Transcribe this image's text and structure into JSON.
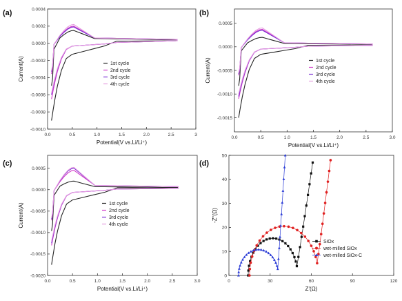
{
  "chart_data": [
    {
      "id": "a",
      "panel_label": "(a)",
      "type": "line",
      "xlabel": "Potential(V vs.Li/Li⁺)",
      "ylabel": "Current(A)",
      "xlim": [
        0,
        3.0
      ],
      "ylim": [
        -0.001,
        0.0004
      ],
      "xticks": [
        0,
        0.5,
        1.0,
        1.5,
        2.0,
        2.5,
        3.0
      ],
      "xtick_labels": [
        "0.0",
        "0.5",
        "1.0",
        "1.5",
        "2.0",
        "2.5",
        "3"
      ],
      "yticks": [
        0.0004,
        0.0002,
        0.0,
        -0.0002,
        -0.0004,
        -0.0006,
        -0.0008,
        -0.001
      ],
      "ytick_labels": [
        "0.0004",
        "0.0002",
        "0.0000",
        "-0.0002",
        "-0.0004",
        "-0.0006",
        "-0.0008",
        "-0.0010"
      ],
      "legend_position": "center",
      "series": [
        {
          "name": "1st cycle",
          "color": "#222222",
          "peak": 0.00015,
          "min": -0.0009,
          "upper_tail": 4e-05,
          "lower_tail": 3e-05,
          "shoulder": -8e-05
        },
        {
          "name": "2nd cycle",
          "color": "#d23ac8",
          "peak": 0.0002,
          "min": -0.00065,
          "upper_tail": 4.5e-05,
          "lower_tail": 3e-05,
          "shoulder": -2e-05
        },
        {
          "name": "3rd cycle",
          "color": "#7a2fd4",
          "peak": 0.00019,
          "min": -0.0006,
          "upper_tail": 4.5e-05,
          "lower_tail": 3e-05,
          "shoulder": -2e-05
        },
        {
          "name": "4th cycle",
          "color": "#e59ce0",
          "peak": 0.00022,
          "min": -0.00058,
          "upper_tail": 4.5e-05,
          "lower_tail": 3e-05,
          "shoulder": -2e-05
        }
      ]
    },
    {
      "id": "b",
      "panel_label": "(b)",
      "type": "line",
      "xlabel": "Potential(V vs.Li/Li⁺)",
      "ylabel": "Current(A)",
      "xlim": [
        0,
        3.0
      ],
      "ylim": [
        -0.0018,
        0.0008
      ],
      "xticks": [
        0,
        0.5,
        1.0,
        1.5,
        2.0,
        2.5,
        3.0
      ],
      "xtick_labels": [
        "0.0",
        "0.5",
        "1.0",
        "1.5",
        "2.0",
        "2.5",
        "3.0"
      ],
      "yticks": [
        0.0005,
        0.0,
        -0.0005,
        -0.001,
        -0.0015
      ],
      "ytick_labels": [
        "0.0005",
        "0.0000",
        "-0.0005",
        "-0.0010",
        "-0.0015"
      ],
      "legend_position": "center",
      "series": [
        {
          "name": "1st cycle",
          "color": "#222222",
          "peak": 0.0002,
          "min": -0.0015,
          "upper_tail": 5e-05,
          "lower_tail": 3e-05,
          "shoulder": -0.0001
        },
        {
          "name": "2nd cycle",
          "color": "#d23ac8",
          "peak": 0.00037,
          "min": -0.0011,
          "upper_tail": 6e-05,
          "lower_tail": 3e-05,
          "shoulder": -3e-05
        },
        {
          "name": "3rd cycle",
          "color": "#7a2fd4",
          "peak": 0.00035,
          "min": -0.00105,
          "upper_tail": 6e-05,
          "lower_tail": 3e-05,
          "shoulder": -3e-05
        },
        {
          "name": "4th cycle",
          "color": "#e59ce0",
          "peak": 0.0004,
          "min": -0.001,
          "upper_tail": 6e-05,
          "lower_tail": 3e-05,
          "shoulder": -3e-05
        }
      ]
    },
    {
      "id": "c",
      "panel_label": "(c)",
      "type": "line",
      "xlabel": "Potential(V vs.Li/Li⁺)",
      "ylabel": "Current(A)",
      "xlim": [
        0,
        3.0
      ],
      "ylim": [
        -0.002,
        0.0008
      ],
      "xticks": [
        0,
        0.5,
        1.0,
        1.5,
        2.0,
        2.5,
        3.0
      ],
      "xtick_labels": [
        "0.0",
        "0.5",
        "1.0",
        "1.5",
        "2.0",
        "2.5",
        "3.0"
      ],
      "yticks": [
        0.0005,
        0.0,
        -0.0005,
        -0.001,
        -0.0015,
        -0.002
      ],
      "ytick_labels": [
        "0.0005",
        "0.0000",
        "-0.0005",
        "-0.0010",
        "-0.0015",
        "-0.0020"
      ],
      "legend_position": "center",
      "series": [
        {
          "name": "1st cycle",
          "color": "#222222",
          "peak": 0.0002,
          "min": -0.00175,
          "upper_tail": 5e-05,
          "lower_tail": 3e-05,
          "shoulder": -0.00015
        },
        {
          "name": "2nd cycle",
          "color": "#d23ac8",
          "peak": 0.00045,
          "min": -0.0013,
          "upper_tail": 7e-05,
          "lower_tail": 3e-05,
          "shoulder": -4e-05
        },
        {
          "name": "3rd cycle",
          "color": "#7a2fd4",
          "peak": 0.0005,
          "min": -0.00125,
          "upper_tail": 7e-05,
          "lower_tail": 3e-05,
          "shoulder": -4e-05
        },
        {
          "name": "4th cycle",
          "color": "#e59ce0",
          "peak": 0.00052,
          "min": -0.0012,
          "upper_tail": 7e-05,
          "lower_tail": 3e-05,
          "shoulder": -4e-05
        }
      ]
    },
    {
      "id": "d",
      "panel_label": "(d)",
      "type": "scatter",
      "xlabel": "Z'(Ω)",
      "ylabel": "-Z''(Ω)",
      "xlim": [
        0,
        120
      ],
      "ylim": [
        0,
        50
      ],
      "xticks": [
        0,
        30,
        60,
        90,
        120
      ],
      "xtick_labels": [
        "0",
        "30",
        "60",
        "90",
        "120"
      ],
      "yticks": [
        0,
        10,
        20,
        30,
        40,
        50
      ],
      "ytick_labels": [
        "0",
        "10",
        "20",
        "30",
        "40",
        "50"
      ],
      "legend_position": "lower-right",
      "series": [
        {
          "name": "SiOx",
          "color": "#111111",
          "marker": "square",
          "x_start": 14,
          "diameter": 36,
          "arc_height": 15.5,
          "tail_end_x": 61,
          "tail_end_y": 47
        },
        {
          "name": "wet-milled SiOx",
          "color": "#e02020",
          "marker": "circle",
          "x_start": 15,
          "diameter": 50,
          "arc_height": 20.5,
          "tail_end_x": 74,
          "tail_end_y": 48
        },
        {
          "name": "wet-milled SiOx-C",
          "color": "#2a3bd6",
          "marker": "triangle",
          "x_start": 7,
          "diameter": 29,
          "arc_height": 10.8,
          "tail_end_x": 41,
          "tail_end_y": 50
        }
      ]
    }
  ]
}
